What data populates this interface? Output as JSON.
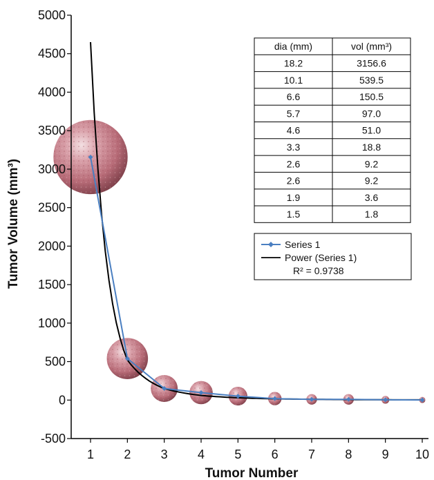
{
  "chart_data": {
    "type": "scatter",
    "xlabel": "Tumor Number",
    "ylabel": "Tumor Volume (mm³)",
    "x": [
      1,
      2,
      3,
      4,
      5,
      6,
      7,
      8,
      9,
      10
    ],
    "xlim": [
      0.5,
      10.5
    ],
    "ylim": [
      -500,
      5000
    ],
    "yticks": [
      -500,
      0,
      500,
      1000,
      1500,
      2000,
      2500,
      3000,
      3500,
      4000,
      4500,
      5000
    ],
    "xticks": [
      1,
      2,
      3,
      4,
      5,
      6,
      7,
      8,
      9,
      10
    ],
    "grid": false,
    "legend_position": "right",
    "series": [
      {
        "name": "Series 1",
        "type": "line-marker",
        "color": "#4a7fc1",
        "values": [
          3156.6,
          539.5,
          150.5,
          97.0,
          51.0,
          18.8,
          9.2,
          9.2,
          3.6,
          1.8
        ]
      },
      {
        "name": "Power (Series 1)",
        "type": "trendline",
        "color": "#000000",
        "trend_values": [
          4650,
          520,
          150,
          60,
          30,
          16,
          10,
          6,
          4,
          3
        ]
      }
    ],
    "r_squared_label": "R² = 0.9738",
    "table": {
      "headers": [
        "dia (mm)",
        "vol (mm³)"
      ],
      "rows": [
        [
          "18.2",
          "3156.6"
        ],
        [
          "10.1",
          "539.5"
        ],
        [
          "6.6",
          "150.5"
        ],
        [
          "5.7",
          "97.0"
        ],
        [
          "4.6",
          "51.0"
        ],
        [
          "3.3",
          "18.8"
        ],
        [
          "2.6",
          "9.2"
        ],
        [
          "2.6",
          "9.2"
        ],
        [
          "1.9",
          "3.6"
        ],
        [
          "1.5",
          "1.8"
        ]
      ]
    },
    "tumor_diameters_mm": [
      18.2,
      10.1,
      6.6,
      5.7,
      4.6,
      3.3,
      2.6,
      2.6,
      1.9,
      1.5
    ],
    "sphere_color": "#c07a84"
  }
}
